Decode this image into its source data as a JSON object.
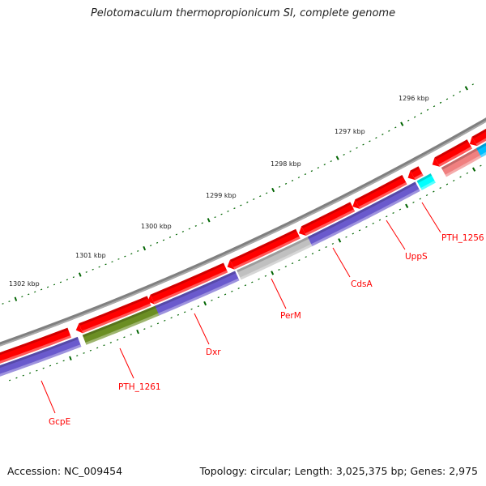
{
  "title": "Pelotomaculum thermopropionicum SI, complete genome",
  "footer": {
    "accession": "Accession: NC_009454",
    "summary": "Topology: circular; Length: 3,025,375 bp; Genes: 2,975"
  },
  "scale_labels": [
    "1302 kbp",
    "1301 kbp",
    "1300 kbp",
    "1299 kbp",
    "1298 kbp",
    "1297 kbp",
    "1296 kbp"
  ],
  "gene_labels": [
    "GcpE",
    "PTH_1261",
    "Dxr",
    "PerM",
    "CdsA",
    "UppS",
    "PTH_1256"
  ],
  "colors": {
    "backbone": "#808080",
    "forward_gene": "#ff0000",
    "reverse_gene": "#6a5acd",
    "green_gene": "#6b8e23",
    "gray_gene": "#c0c0c0",
    "cyan_gene": "#00ffff",
    "pink_gene": "#f08080",
    "sky_gene": "#00bfff",
    "tick": "#006400",
    "label": "#ff0000"
  }
}
